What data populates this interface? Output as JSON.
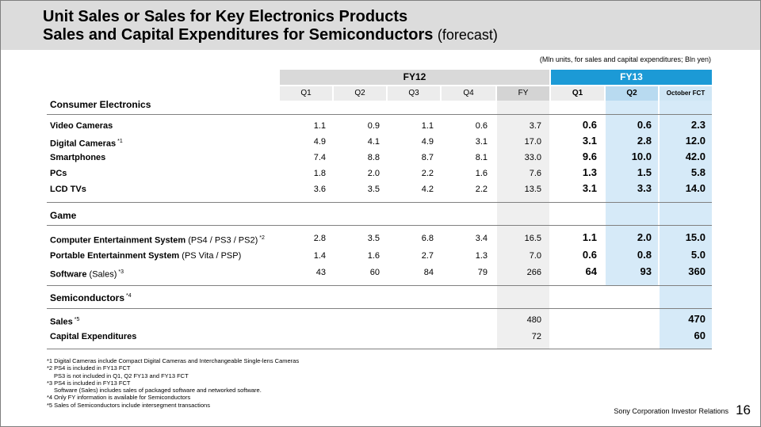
{
  "title": {
    "line1": "Unit Sales or Sales for Key Electronics Products",
    "line2": "Sales and Capital Expenditures for Semiconductors",
    "line2_suffix": "(forecast)"
  },
  "units_note": "(Mln units, for sales and capital expenditures; Bln yen)",
  "header": {
    "fy12": "FY12",
    "fy13": "FY13",
    "fy12_cols": [
      "Q1",
      "Q2",
      "Q3",
      "Q4",
      "FY"
    ],
    "fy13_cols": [
      "Q1",
      "Q2",
      "October FCT"
    ]
  },
  "colors": {
    "fy13_band": "#1c9ad6",
    "fy13_shade": "#d6eaf8",
    "fy12_band": "#d9d9d9"
  },
  "sections": {
    "consumer": {
      "label": "Consumer Electronics"
    },
    "game": {
      "label": "Game"
    },
    "semi": {
      "label": "Semiconductors",
      "note": "*4"
    }
  },
  "rows": [
    {
      "label": "Video Cameras",
      "sub": "",
      "note": "",
      "values": [
        "1.1",
        "0.9",
        "1.1",
        "0.6",
        "3.7",
        "0.6",
        "0.6",
        "2.3"
      ]
    },
    {
      "label": "Digital Cameras",
      "sub": "",
      "note": "*1",
      "values": [
        "4.9",
        "4.1",
        "4.9",
        "3.1",
        "17.0",
        "3.1",
        "2.8",
        "12.0"
      ]
    },
    {
      "label": "Smartphones",
      "sub": "",
      "note": "",
      "values": [
        "7.4",
        "8.8",
        "8.7",
        "8.1",
        "33.0",
        "9.6",
        "10.0",
        "42.0"
      ]
    },
    {
      "label": "PCs",
      "sub": "",
      "note": "",
      "values": [
        "1.8",
        "2.0",
        "2.2",
        "1.6",
        "7.6",
        "1.3",
        "1.5",
        "5.8"
      ]
    },
    {
      "label": "LCD TVs",
      "sub": "",
      "note": "",
      "values": [
        "3.6",
        "3.5",
        "4.2",
        "2.2",
        "13.5",
        "3.1",
        "3.3",
        "14.0"
      ]
    },
    {
      "label": "Computer Entertainment System",
      "sub": "(PS4 / PS3 / PS2)",
      "note": "*2",
      "values": [
        "2.8",
        "3.5",
        "6.8",
        "3.4",
        "16.5",
        "1.1",
        "2.0",
        "15.0"
      ]
    },
    {
      "label": "Portable Entertainment System",
      "sub": "(PS Vita / PSP)",
      "note": "",
      "values": [
        "1.4",
        "1.6",
        "2.7",
        "1.3",
        "7.0",
        "0.6",
        "0.8",
        "5.0"
      ]
    },
    {
      "label": "Software",
      "sub": "(Sales)",
      "note": "*3",
      "values": [
        "43",
        "60",
        "84",
        "79",
        "266",
        "64",
        "93",
        "360"
      ]
    },
    {
      "label": "Sales",
      "sub": "",
      "note": "*5",
      "values": [
        "",
        "",
        "",
        "",
        "480",
        "",
        "",
        "470"
      ]
    },
    {
      "label": "Capital Expenditures",
      "sub": "",
      "note": "",
      "values": [
        "",
        "",
        "",
        "",
        "72",
        "",
        "",
        "60"
      ]
    }
  ],
  "footnotes": [
    "*1 Digital Cameras include Compact Digital Cameras and Interchangeable Single-lens Cameras",
    "*2 PS4 is included in FY13 FCT",
    "PS3 is not included in Q1, Q2 FY13 and FY13 FCT",
    "*3 PS4 is included in FY13 FCT",
    "Software (Sales) includes sales of packaged software and networked software.",
    "*4 Only FY information is available for Semiconductors",
    "*5 Sales of Semiconductors include intersegment transactions"
  ],
  "footer": "Sony Corporation  Investor Relations",
  "page_number": "16"
}
